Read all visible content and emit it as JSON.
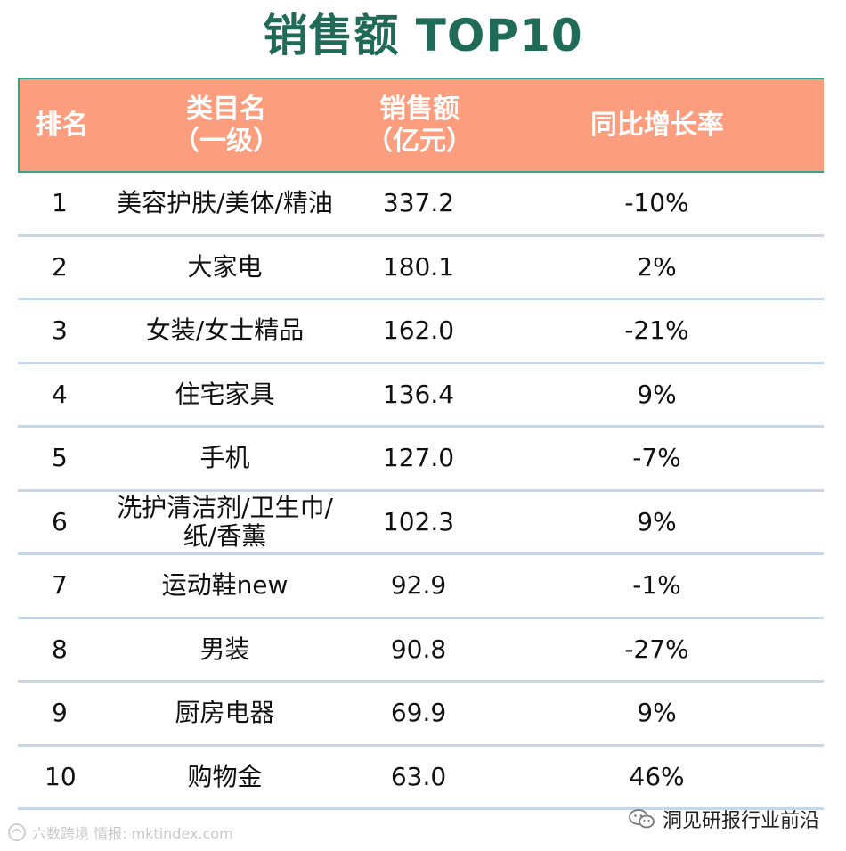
{
  "title": "销售额 TOP10",
  "table": {
    "headers": {
      "rank": "排名",
      "name_line1": "类目名",
      "name_line2": "（一级）",
      "sales_line1": "销售额",
      "sales_line2": "（亿元）",
      "growth": "同比增长率"
    },
    "rows": [
      {
        "rank": "1",
        "name": "美容护肤/美体/精油",
        "sales": "337.2",
        "growth": "-10%"
      },
      {
        "rank": "2",
        "name": "大家电",
        "sales": "180.1",
        "growth": "2%"
      },
      {
        "rank": "3",
        "name": "女装/女士精品",
        "sales": "162.0",
        "growth": "-21%"
      },
      {
        "rank": "4",
        "name": "住宅家具",
        "sales": "136.4",
        "growth": "9%"
      },
      {
        "rank": "5",
        "name": "手机",
        "sales": "127.0",
        "growth": "-7%"
      },
      {
        "rank": "6",
        "name": "洗护清洁剂/卫生巾/\n纸/香薰",
        "sales": "102.3",
        "growth": "9%"
      },
      {
        "rank": "7",
        "name": "运动鞋new",
        "sales": "92.9",
        "growth": "-1%"
      },
      {
        "rank": "8",
        "name": "男装",
        "sales": "90.8",
        "growth": "-27%"
      },
      {
        "rank": "9",
        "name": "厨房电器",
        "sales": "69.9",
        "growth": "9%"
      },
      {
        "rank": "10",
        "name": "购物金",
        "sales": "63.0",
        "growth": "46%"
      }
    ]
  },
  "footer": {
    "watermark_left": "六数跨境 情报: mktindex.com",
    "brand_right": "洞见研报行业前沿"
  },
  "colors": {
    "title": "#1f6b57",
    "header_bg": "#fc9d7e",
    "header_text": "#ffffff",
    "row_divider": "#c7d7ea"
  }
}
